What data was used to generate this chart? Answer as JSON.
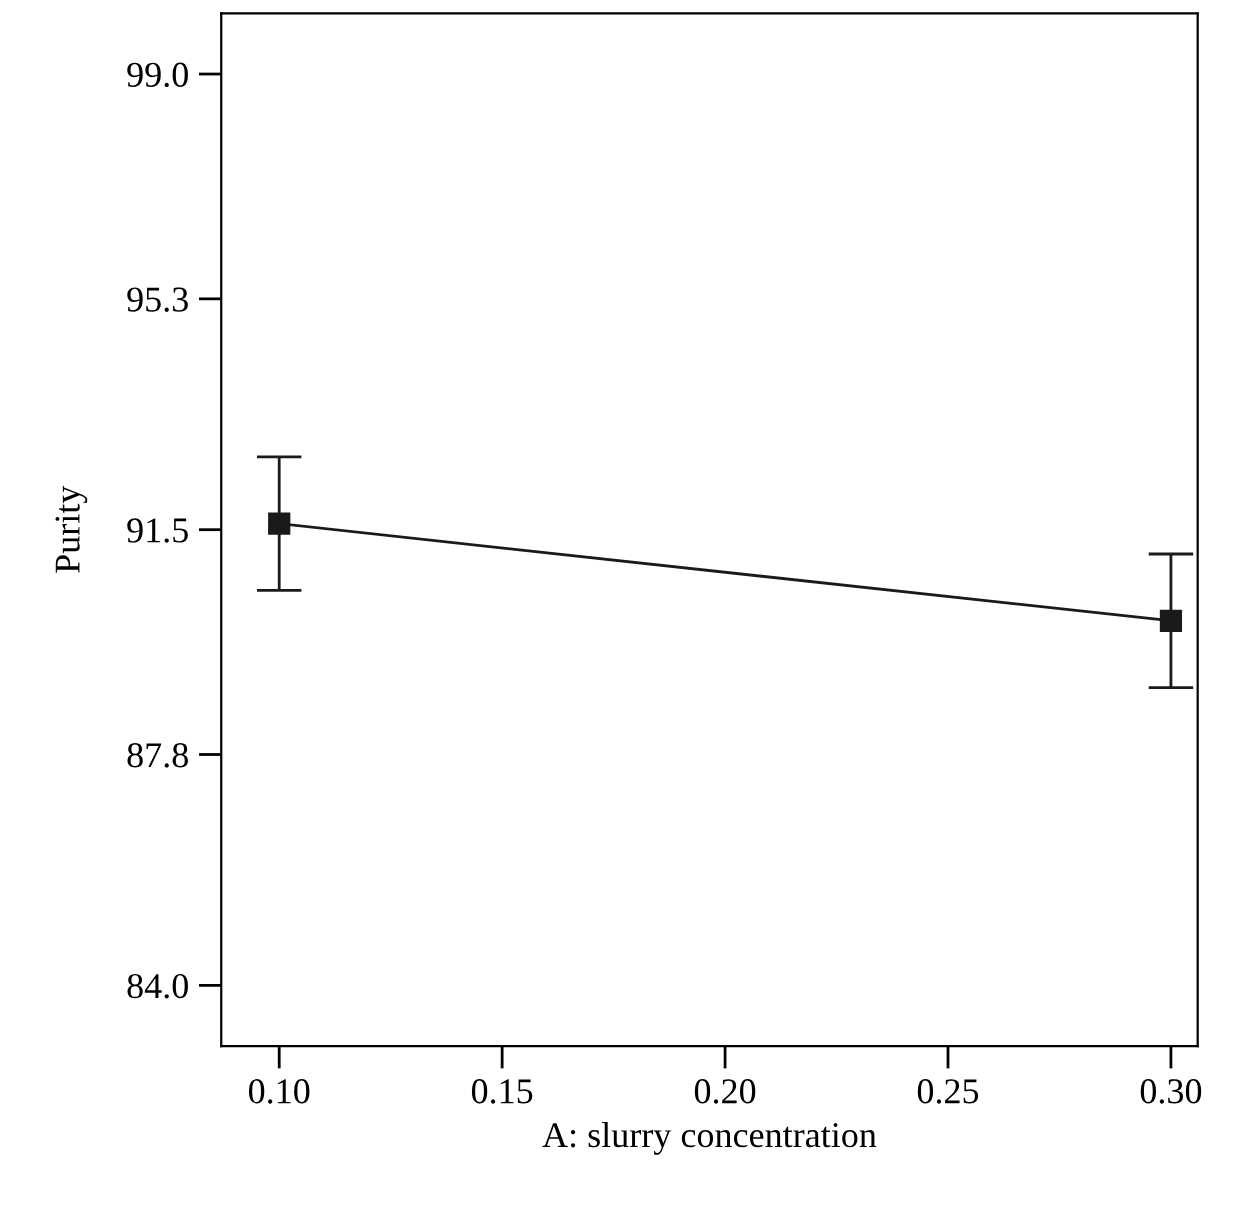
{
  "chart_data": {
    "type": "line",
    "xlabel": "A: slurry concentration",
    "ylabel": "Purity",
    "x": [
      0.1,
      0.3
    ],
    "series": [
      {
        "color": "#1a1a1a",
        "values": [
          91.6,
          90.0
        ],
        "errors": [
          1.1,
          1.1
        ]
      }
    ],
    "xlim": [
      0.087,
      0.306
    ],
    "xticks": [
      {
        "value": 0.1,
        "label": "0.10"
      },
      0.15,
      {
        "value": 0.2,
        "label": "0.20"
      },
      0.25,
      {
        "value": 0.3,
        "label": "0.30"
      }
    ],
    "ylim": [
      83.0,
      100.0
    ],
    "yticks": [
      {
        "value": 84,
        "label": "84.0"
      },
      87.8,
      91.5,
      95.3,
      {
        "value": 99,
        "label": "99.0"
      }
    ],
    "grid": false,
    "legend": false,
    "marker": "square",
    "line_style": "solid"
  }
}
